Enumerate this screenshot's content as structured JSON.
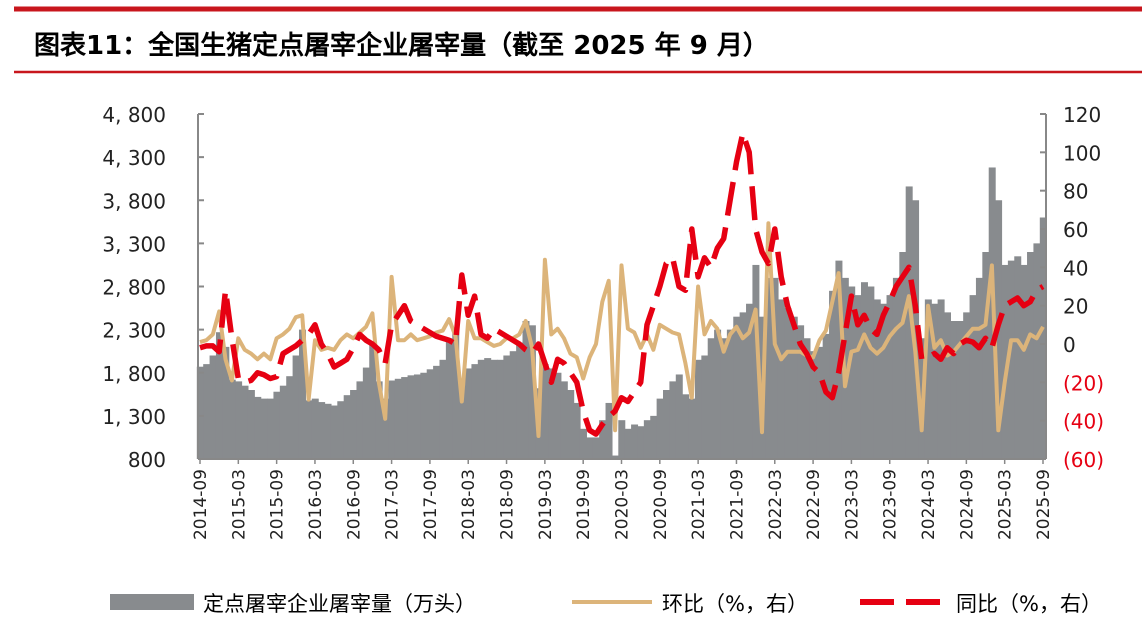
{
  "title": "图表11：全国生猪定点屠宰企业屠宰量（截至 2025 年 9 月）",
  "colors": {
    "bar": "#888b8e",
    "mom": "#dcb47a",
    "yoy": "#e60012",
    "rule": "#c8161d",
    "neg_tick": "#e60012"
  },
  "chart_data": {
    "type": "bar+line",
    "title": "全国生猪定点屠宰企业屠宰量（截至 2025 年 9 月）",
    "x_start": "2014-09",
    "x_end": "2025-09",
    "x_tick_labels": [
      "2014-09",
      "2015-03",
      "2015-09",
      "2016-03",
      "2016-09",
      "2017-03",
      "2017-09",
      "2018-03",
      "2018-09",
      "2019-03",
      "2019-09",
      "2020-03",
      "2020-09",
      "2021-03",
      "2021-09",
      "2022-03",
      "2022-09",
      "2023-03",
      "2023-09",
      "2024-03",
      "2024-09",
      "2025-03",
      "2025-09"
    ],
    "left_axis": {
      "range": [
        800,
        4800
      ],
      "tick_labels": [
        "4, 800",
        "4, 300",
        "3, 800",
        "3, 300",
        "2, 800",
        "2, 300",
        "1, 800",
        "1, 300",
        "800"
      ]
    },
    "right_axis": {
      "range": [
        -60,
        120
      ],
      "tick_labels": [
        "120",
        "100",
        "80",
        "60",
        "40",
        "20",
        "0",
        "(20)",
        "(40)",
        "(60)"
      ]
    },
    "legend": [
      "定点屠宰企业屠宰量（万头）",
      "环比（%，右）",
      "同比（%，右）"
    ],
    "series": [
      {
        "name": "定点屠宰企业屠宰量（万头）",
        "type": "bar",
        "axis": "left",
        "values": [
          1870,
          1900,
          2000,
          2270,
          2100,
          1720,
          1700,
          1650,
          1600,
          1520,
          1500,
          1500,
          1580,
          1650,
          1760,
          2000,
          2300,
          1480,
          1500,
          1460,
          1440,
          1420,
          1470,
          1540,
          1600,
          1700,
          1860,
          2150,
          1700,
          1500,
          1710,
          1730,
          1750,
          1770,
          1780,
          1800,
          1840,
          1880,
          1950,
          2200,
          2280,
          1650,
          1850,
          1900,
          1950,
          1970,
          1950,
          1950,
          2000,
          2050,
          2150,
          2400,
          2350,
          1620,
          1900,
          1850,
          1800,
          1700,
          1600,
          1450,
          1150,
          1050,
          1050,
          1250,
          1450,
          840,
          1250,
          1150,
          1200,
          1180,
          1250,
          1300,
          1500,
          1600,
          1700,
          1780,
          1550,
          1500,
          1950,
          2000,
          2200,
          2300,
          2200,
          2300,
          2450,
          2500,
          2600,
          3050,
          2450,
          2900,
          2900,
          2650,
          2550,
          2450,
          2350,
          2200,
          2050,
          2100,
          2250,
          2750,
          3100,
          2900,
          2800,
          2700,
          2850,
          2800,
          2650,
          2600,
          2700,
          2900,
          3200,
          3960,
          3800,
          2200,
          2650,
          2600,
          2650,
          2500,
          2400,
          2400,
          2500,
          2700,
          2900,
          3200,
          4180,
          3800,
          3050,
          3100,
          3150,
          3050,
          3200,
          3300,
          3600
        ]
      },
      {
        "name": "环比（%，右）",
        "type": "line",
        "axis": "right",
        "values": [
          1,
          2,
          5,
          17,
          -8,
          -19,
          3,
          -3,
          -5,
          -8,
          -5,
          -8,
          3,
          5,
          8,
          14,
          15,
          -29,
          2,
          -3,
          -2,
          -3,
          2,
          5,
          3,
          6,
          9,
          16,
          -20,
          -39,
          35,
          2,
          2,
          5,
          2,
          3,
          4,
          6,
          7,
          13,
          4,
          -30,
          12,
          3,
          3,
          1,
          -1,
          0,
          3,
          3,
          5,
          12,
          -2,
          -48,
          44,
          5,
          8,
          3,
          -5,
          -7,
          -18,
          -7,
          0,
          22,
          33,
          -45,
          41,
          8,
          6,
          -2,
          5,
          -3,
          10,
          8,
          6,
          5,
          -10,
          -28,
          30,
          5,
          12,
          8,
          -4,
          5,
          9,
          3,
          6,
          18,
          -46,
          63,
          0,
          -8,
          -4,
          -4,
          -4,
          -6,
          -7,
          2,
          7,
          22,
          37,
          -22,
          -4,
          -3,
          5,
          -2,
          -5,
          -2,
          4,
          8,
          11,
          25,
          -4,
          -45,
          20,
          -2,
          2,
          -6,
          -4,
          0,
          4,
          8,
          8,
          10,
          41,
          -45,
          -20,
          2,
          2,
          -3,
          5,
          3,
          9
        ]
      },
      {
        "name": "同比（%，右）",
        "type": "line",
        "axis": "right",
        "style": "dashed",
        "values": [
          -2,
          -1,
          -1,
          -4,
          28,
          3,
          -18,
          -20,
          -19,
          -15,
          -16,
          -18,
          -17,
          -5,
          -3,
          -1,
          2,
          5,
          10,
          0,
          -5,
          -12,
          -10,
          -8,
          -2,
          5,
          2,
          0,
          -3,
          -10,
          10,
          15,
          20,
          12,
          10,
          8,
          6,
          4,
          3,
          2,
          0,
          36,
          15,
          25,
          5,
          3,
          8,
          6,
          4,
          2,
          0,
          -3,
          -5,
          0,
          -10,
          -20,
          -8,
          -10,
          -15,
          -20,
          -35,
          -45,
          -47,
          -42,
          -38,
          -35,
          -28,
          -30,
          -25,
          -20,
          10,
          20,
          30,
          42,
          45,
          30,
          28,
          60,
          35,
          45,
          40,
          50,
          55,
          75,
          95,
          110,
          100,
          60,
          48,
          42,
          60,
          35,
          20,
          10,
          0,
          -5,
          -12,
          -15,
          -25,
          -28,
          -15,
          5,
          25,
          10,
          15,
          8,
          5,
          15,
          22,
          30,
          35,
          40,
          20,
          -8,
          -7,
          -5,
          -8,
          -2,
          -5,
          0,
          2,
          1,
          -2,
          3,
          -2,
          10,
          20,
          22,
          24,
          20,
          22,
          28,
          30
        ]
      }
    ]
  }
}
